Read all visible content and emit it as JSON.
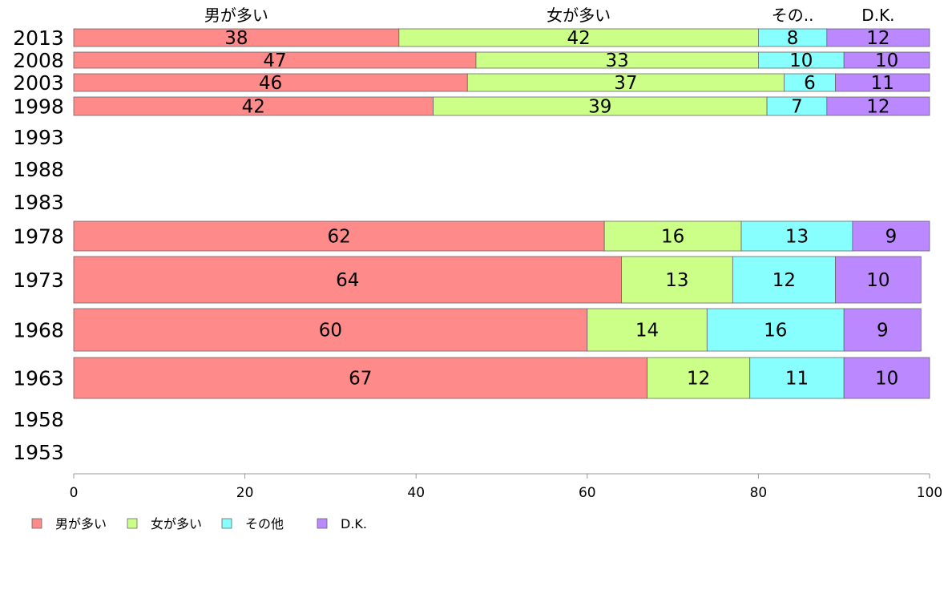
{
  "chart_data": {
    "type": "bar",
    "orientation": "horizontal",
    "stacked": true,
    "categories": [
      "2013",
      "2008",
      "2003",
      "1998",
      "1993",
      "1988",
      "1983",
      "1978",
      "1973",
      "1968",
      "1963",
      "1958",
      "1953"
    ],
    "series": [
      {
        "name": "男が多い",
        "header": "男が多い",
        "color": "#ff8a8a",
        "values": [
          38,
          47,
          46,
          42,
          null,
          null,
          null,
          62,
          64,
          60,
          67,
          null,
          null
        ]
      },
      {
        "name": "女が多い",
        "header": "女が多い",
        "color": "#ccff88",
        "values": [
          42,
          33,
          37,
          39,
          null,
          null,
          null,
          16,
          13,
          14,
          12,
          null,
          null
        ]
      },
      {
        "name": "その他",
        "header": "その..",
        "color": "#88ffff",
        "values": [
          8,
          10,
          6,
          7,
          null,
          null,
          null,
          13,
          12,
          16,
          11,
          null,
          null
        ]
      },
      {
        "name": "D.K.",
        "header": "D.K.",
        "color": "#bb88ff",
        "values": [
          12,
          10,
          11,
          12,
          null,
          null,
          null,
          9,
          10,
          9,
          10,
          null,
          null
        ]
      }
    ],
    "xlim": [
      0,
      100
    ],
    "xticks": [
      "0",
      "20",
      "40",
      "60",
      "80",
      "100"
    ],
    "title": "",
    "xlabel": "",
    "ylabel": "",
    "grid": false,
    "legend_position": "bottom-left"
  }
}
